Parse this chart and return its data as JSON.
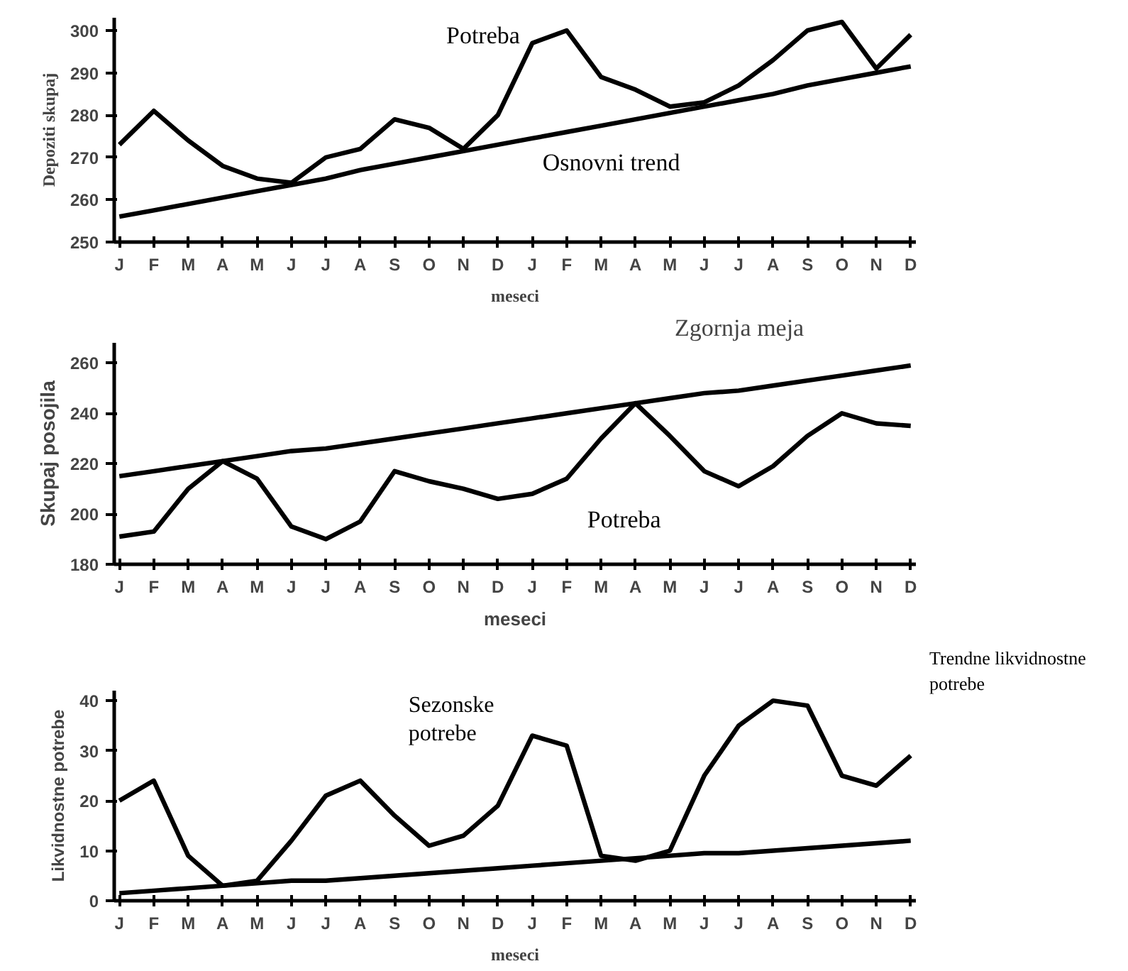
{
  "chart_data": [
    {
      "type": "line",
      "ylabel": "Depoziti skupaj",
      "xlabel": "meseci",
      "categories": [
        "J",
        "F",
        "M",
        "A",
        "M",
        "J",
        "J",
        "A",
        "S",
        "O",
        "N",
        "D",
        "J",
        "F",
        "M",
        "A",
        "M",
        "J",
        "J",
        "A",
        "S",
        "O",
        "N",
        "D"
      ],
      "series": [
        {
          "color": "#000000",
          "values": [
            273,
            281,
            274,
            268,
            265,
            264,
            270,
            272,
            279,
            277,
            272,
            280,
            297,
            300,
            289,
            286,
            282,
            283,
            287,
            293,
            300,
            302,
            291,
            299
          ]
        },
        {
          "color": "#000000",
          "values": [
            256,
            257.5,
            259,
            260.5,
            262,
            263.5,
            265,
            267,
            268.5,
            270,
            271.5,
            273,
            274.5,
            276,
            277.5,
            279,
            280.5,
            282,
            283.5,
            285,
            287,
            288.5,
            290,
            291.5
          ]
        }
      ],
      "ylim": [
        250,
        303
      ],
      "yticks": [
        250,
        260,
        270,
        280,
        290,
        300
      ],
      "grid": false,
      "annotations": [
        "Potreba",
        "Osnovni trend"
      ]
    },
    {
      "type": "line",
      "ylabel": "Skupaj posojila",
      "xlabel": "meseci",
      "categories": [
        "J",
        "F",
        "M",
        "A",
        "M",
        "J",
        "J",
        "A",
        "S",
        "O",
        "N",
        "D",
        "J",
        "F",
        "M",
        "A",
        "M",
        "J",
        "J",
        "A",
        "S",
        "O",
        "N",
        "D"
      ],
      "series": [
        {
          "color": "#000000",
          "values": [
            191,
            193,
            210,
            221,
            214,
            195,
            190,
            197,
            217,
            213,
            210,
            206,
            208,
            214,
            230,
            244,
            231,
            217,
            211,
            219,
            231,
            240,
            236,
            235
          ]
        },
        {
          "color": "#000000",
          "values": [
            215,
            217,
            219,
            221,
            223,
            225,
            226,
            228,
            230,
            232,
            234,
            236,
            238,
            240,
            242,
            244,
            246,
            248,
            249,
            251,
            253,
            255,
            257,
            259
          ]
        }
      ],
      "ylim": [
        180,
        268
      ],
      "yticks": [
        180,
        200,
        220,
        240,
        260
      ],
      "grid": false,
      "annotations": [
        "Zgornja meja",
        "Potreba"
      ]
    },
    {
      "type": "line",
      "ylabel": "Likvidnostne potrebe",
      "xlabel": "meseci",
      "categories": [
        "J",
        "F",
        "M",
        "A",
        "M",
        "J",
        "J",
        "A",
        "S",
        "O",
        "N",
        "D",
        "J",
        "F",
        "M",
        "A",
        "M",
        "J",
        "J",
        "A",
        "S",
        "O",
        "N",
        "D"
      ],
      "series": [
        {
          "color": "#000000",
          "values": [
            20,
            24,
            9,
            3,
            4,
            12,
            21,
            24,
            17,
            11,
            13,
            19,
            33,
            31,
            9,
            8,
            10,
            25,
            35,
            40,
            39,
            25,
            23,
            29
          ]
        },
        {
          "color": "#000000",
          "values": [
            1.5,
            2,
            2.5,
            3,
            3.5,
            4,
            4,
            4.5,
            5,
            5.5,
            6,
            6.5,
            7,
            7.5,
            8,
            8.5,
            9,
            9.5,
            9.5,
            10,
            10.5,
            11,
            11.5,
            12
          ]
        }
      ],
      "ylim": [
        0,
        42
      ],
      "yticks": [
        0,
        10,
        20,
        30,
        40
      ],
      "grid": false,
      "annotations": [
        "Sezonske\npotrebe",
        "Trendne likvidnostne\npotrebe"
      ]
    }
  ]
}
